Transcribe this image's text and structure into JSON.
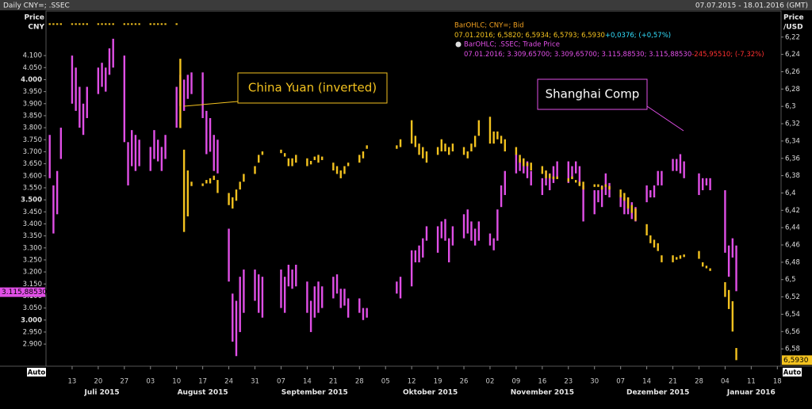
{
  "chart_data": {
    "type": "range-bar",
    "title": "Daily CNY=; .SSEC",
    "subtitle": "07.07.2015 - 18.01.2016 (GMT)",
    "y_label": [
      "Price",
      "CNY"
    ],
    "y2_label": [
      "Price",
      "/USD"
    ],
    "auto_label": "Auto",
    "xlim": [
      "2015-07-06",
      "2016-01-19"
    ],
    "ylim": [
      2.808,
      4.285
    ],
    "y2lim": [
      6.6,
      6.19
    ],
    "xticks": [
      {
        "value": "2015-07-13",
        "label": "13"
      },
      {
        "value": "2015-07-20",
        "label": "20"
      },
      {
        "value": "2015-07-27",
        "label": "27"
      },
      {
        "value": "2015-08-03",
        "label": "03"
      },
      {
        "value": "2015-08-10",
        "label": "10"
      },
      {
        "value": "2015-08-17",
        "label": "17"
      },
      {
        "value": "2015-08-24",
        "label": "24"
      },
      {
        "value": "2015-08-31",
        "label": "31"
      },
      {
        "value": "2015-09-07",
        "label": "07"
      },
      {
        "value": "2015-09-14",
        "label": "14"
      },
      {
        "value": "2015-09-21",
        "label": "21"
      },
      {
        "value": "2015-09-28",
        "label": "28"
      },
      {
        "value": "2015-10-05",
        "label": "05"
      },
      {
        "value": "2015-10-12",
        "label": "12"
      },
      {
        "value": "2015-10-19",
        "label": "19"
      },
      {
        "value": "2015-10-26",
        "label": "26"
      },
      {
        "value": "2015-11-02",
        "label": "02"
      },
      {
        "value": "2015-11-09",
        "label": "09"
      },
      {
        "value": "2015-11-16",
        "label": "16"
      },
      {
        "value": "2015-11-23",
        "label": "23"
      },
      {
        "value": "2015-11-30",
        "label": "30"
      },
      {
        "value": "2015-12-07",
        "label": "07"
      },
      {
        "value": "2015-12-14",
        "label": "14"
      },
      {
        "value": "2015-12-21",
        "label": "21"
      },
      {
        "value": "2015-12-28",
        "label": "28"
      },
      {
        "value": "2016-01-04",
        "label": "04"
      },
      {
        "value": "2016-01-11",
        "label": "11"
      },
      {
        "value": "2016-01-18",
        "label": "18"
      }
    ],
    "months": [
      {
        "value": "2015-07-21",
        "label": "Juli 2015"
      },
      {
        "value": "2015-08-17",
        "label": "August 2015"
      },
      {
        "value": "2015-09-16",
        "label": "September 2015"
      },
      {
        "value": "2015-10-17",
        "label": "Oktober 2015"
      },
      {
        "value": "2015-11-16",
        "label": "November 2015"
      },
      {
        "value": "2015-12-17",
        "label": "Dezember 2015"
      },
      {
        "value": "2016-01-11",
        "label": "Januar 2016"
      }
    ],
    "yticks": [
      {
        "value": 2.9,
        "label": "2.900"
      },
      {
        "value": 2.95,
        "label": "2.950"
      },
      {
        "value": 3.0,
        "label": "3.000"
      },
      {
        "value": 3.05,
        "label": "3.050"
      },
      {
        "value": 3.1,
        "label": "3.100"
      },
      {
        "value": 3.15,
        "label": "3.150"
      },
      {
        "value": 3.2,
        "label": "3.200"
      },
      {
        "value": 3.25,
        "label": "3.250"
      },
      {
        "value": 3.3,
        "label": "3.300"
      },
      {
        "value": 3.35,
        "label": "3.350"
      },
      {
        "value": 3.4,
        "label": "3.400"
      },
      {
        "value": 3.45,
        "label": "3.450"
      },
      {
        "value": 3.5,
        "label": "3.500"
      },
      {
        "value": 3.55,
        "label": "3.550"
      },
      {
        "value": 3.6,
        "label": "3.600"
      },
      {
        "value": 3.65,
        "label": "3.650"
      },
      {
        "value": 3.7,
        "label": "3.700"
      },
      {
        "value": 3.75,
        "label": "3.750"
      },
      {
        "value": 3.8,
        "label": "3.800"
      },
      {
        "value": 3.85,
        "label": "3.850"
      },
      {
        "value": 3.9,
        "label": "3.900"
      },
      {
        "value": 3.95,
        "label": "3.950"
      },
      {
        "value": 4.0,
        "label": "4.000"
      },
      {
        "value": 4.05,
        "label": "4.050"
      },
      {
        "value": 4.1,
        "label": "4.100"
      }
    ],
    "y2ticks": [
      {
        "value": 6.22,
        "label": "6,22"
      },
      {
        "value": 6.24,
        "label": "6,24"
      },
      {
        "value": 6.26,
        "label": "6,26"
      },
      {
        "value": 6.28,
        "label": "6,28"
      },
      {
        "value": 6.3,
        "label": "6,3"
      },
      {
        "value": 6.32,
        "label": "6,32"
      },
      {
        "value": 6.34,
        "label": "6,34"
      },
      {
        "value": 6.36,
        "label": "6,36"
      },
      {
        "value": 6.38,
        "label": "6,38"
      },
      {
        "value": 6.4,
        "label": "6,4"
      },
      {
        "value": 6.42,
        "label": "6,42"
      },
      {
        "value": 6.44,
        "label": "6,44"
      },
      {
        "value": 6.46,
        "label": "6,46"
      },
      {
        "value": 6.48,
        "label": "6,48"
      },
      {
        "value": 6.5,
        "label": "6,5"
      },
      {
        "value": 6.52,
        "label": "6,52"
      },
      {
        "value": 6.54,
        "label": "6,54"
      },
      {
        "value": 6.56,
        "label": "6,56"
      },
      {
        "value": 6.58,
        "label": "6,58"
      }
    ],
    "x": [
      "2015-07-07",
      "2015-07-08",
      "2015-07-09",
      "2015-07-10",
      "2015-07-13",
      "2015-07-14",
      "2015-07-15",
      "2015-07-16",
      "2015-07-17",
      "2015-07-20",
      "2015-07-21",
      "2015-07-22",
      "2015-07-23",
      "2015-07-24",
      "2015-07-27",
      "2015-07-28",
      "2015-07-29",
      "2015-07-30",
      "2015-07-31",
      "2015-08-03",
      "2015-08-04",
      "2015-08-05",
      "2015-08-06",
      "2015-08-07",
      "2015-08-10",
      "2015-08-11",
      "2015-08-12",
      "2015-08-13",
      "2015-08-14",
      "2015-08-17",
      "2015-08-18",
      "2015-08-19",
      "2015-08-20",
      "2015-08-21",
      "2015-08-24",
      "2015-08-25",
      "2015-08-26",
      "2015-08-27",
      "2015-08-28",
      "2015-08-31",
      "2015-09-01",
      "2015-09-02",
      "2015-09-07",
      "2015-09-08",
      "2015-09-09",
      "2015-09-10",
      "2015-09-11",
      "2015-09-14",
      "2015-09-15",
      "2015-09-16",
      "2015-09-17",
      "2015-09-18",
      "2015-09-21",
      "2015-09-22",
      "2015-09-23",
      "2015-09-24",
      "2015-09-25",
      "2015-09-28",
      "2015-09-29",
      "2015-09-30",
      "2015-10-08",
      "2015-10-09",
      "2015-10-12",
      "2015-10-13",
      "2015-10-14",
      "2015-10-15",
      "2015-10-16",
      "2015-10-19",
      "2015-10-20",
      "2015-10-21",
      "2015-10-22",
      "2015-10-23",
      "2015-10-26",
      "2015-10-27",
      "2015-10-28",
      "2015-10-29",
      "2015-10-30",
      "2015-11-02",
      "2015-11-03",
      "2015-11-04",
      "2015-11-05",
      "2015-11-06",
      "2015-11-09",
      "2015-11-10",
      "2015-11-11",
      "2015-11-12",
      "2015-11-13",
      "2015-11-16",
      "2015-11-17",
      "2015-11-18",
      "2015-11-19",
      "2015-11-20",
      "2015-11-23",
      "2015-11-24",
      "2015-11-25",
      "2015-11-26",
      "2015-11-27",
      "2015-11-30",
      "2015-12-01",
      "2015-12-02",
      "2015-12-03",
      "2015-12-04",
      "2015-12-07",
      "2015-12-08",
      "2015-12-09",
      "2015-12-10",
      "2015-12-11",
      "2015-12-14",
      "2015-12-15",
      "2015-12-16",
      "2015-12-17",
      "2015-12-18",
      "2015-12-21",
      "2015-12-22",
      "2015-12-23",
      "2015-12-24",
      "2015-12-28",
      "2015-12-29",
      "2015-12-30",
      "2015-12-31",
      "2016-01-04",
      "2016-01-05",
      "2016-01-06",
      "2016-01-07"
    ],
    "series": [
      {
        "name": "BarOHLC; .SSEC; Trade Price",
        "color": "#e04fe6",
        "detail": "07.01.2016; 3.309,65700; 3.309,65700; 3.115,88530; 3.115,88530",
        "change": "-245,95510; (-7,32%)",
        "last_value": 3.1158853,
        "last_label": "3.115,88530",
        "low": [
          3.59,
          3.36,
          3.44,
          3.67,
          3.9,
          3.87,
          3.8,
          3.77,
          3.84,
          3.94,
          3.97,
          3.95,
          4.02,
          4.05,
          3.74,
          3.56,
          3.64,
          3.62,
          3.64,
          3.62,
          3.67,
          3.66,
          3.62,
          3.67,
          3.8,
          3.89,
          3.87,
          3.92,
          3.94,
          3.84,
          3.69,
          3.7,
          3.62,
          3.61,
          3.16,
          2.91,
          2.85,
          2.95,
          3.03,
          3.08,
          3.03,
          3.01,
          3.05,
          3.03,
          3.14,
          3.13,
          3.14,
          3.03,
          2.95,
          3.01,
          3.03,
          3.05,
          3.09,
          3.11,
          3.05,
          3.06,
          3.01,
          3.03,
          3.0,
          3.01,
          3.11,
          3.09,
          3.14,
          3.24,
          3.24,
          3.26,
          3.33,
          3.28,
          3.34,
          3.33,
          3.24,
          3.31,
          3.34,
          3.36,
          3.33,
          3.31,
          3.33,
          3.31,
          3.29,
          3.33,
          3.47,
          3.52,
          3.61,
          3.62,
          3.61,
          3.59,
          3.56,
          3.52,
          3.56,
          3.54,
          3.57,
          3.59,
          3.57,
          3.59,
          3.61,
          3.56,
          3.41,
          3.44,
          3.49,
          3.47,
          3.52,
          3.51,
          3.47,
          3.44,
          3.44,
          3.42,
          3.41,
          3.49,
          3.51,
          3.51,
          3.56,
          3.56,
          3.62,
          3.62,
          3.61,
          3.59,
          3.52,
          3.54,
          3.56,
          3.54,
          3.28,
          3.18,
          3.26,
          3.12
        ],
        "high": [
          3.77,
          3.56,
          3.62,
          3.8,
          4.1,
          4.05,
          3.97,
          3.9,
          3.97,
          4.05,
          4.07,
          4.05,
          4.13,
          4.17,
          4.1,
          3.74,
          3.79,
          3.77,
          3.75,
          3.72,
          3.79,
          3.75,
          3.72,
          3.77,
          3.97,
          4.02,
          4.0,
          4.02,
          4.03,
          4.03,
          3.87,
          3.84,
          3.77,
          3.75,
          3.38,
          3.11,
          3.08,
          3.18,
          3.21,
          3.21,
          3.19,
          3.18,
          3.21,
          3.18,
          3.23,
          3.21,
          3.23,
          3.16,
          3.08,
          3.14,
          3.16,
          3.14,
          3.18,
          3.19,
          3.13,
          3.13,
          3.09,
          3.09,
          3.05,
          3.05,
          3.16,
          3.18,
          3.29,
          3.29,
          3.31,
          3.34,
          3.39,
          3.39,
          3.41,
          3.42,
          3.34,
          3.39,
          3.44,
          3.46,
          3.41,
          3.38,
          3.41,
          3.36,
          3.34,
          3.46,
          3.56,
          3.62,
          3.69,
          3.67,
          3.67,
          3.66,
          3.62,
          3.59,
          3.62,
          3.61,
          3.64,
          3.66,
          3.66,
          3.64,
          3.66,
          3.64,
          3.56,
          3.54,
          3.54,
          3.56,
          3.61,
          3.57,
          3.52,
          3.51,
          3.51,
          3.49,
          3.47,
          3.56,
          3.54,
          3.56,
          3.62,
          3.62,
          3.67,
          3.67,
          3.69,
          3.66,
          3.61,
          3.59,
          3.59,
          3.59,
          3.54,
          3.31,
          3.34,
          3.31
        ]
      },
      {
        "name": "BarOHLC; CNY=; Bid",
        "color": "#f3c21f",
        "axis": "y2",
        "detail": "07.01.2016; 6,5820; 6,5934; 6,5793; 6,5930",
        "change": "+0,0376; (+0,57%)",
        "last_value": 6.593,
        "last_label": "6,5930",
        "low": [
          6.205,
          6.205,
          6.205,
          6.205,
          6.205,
          6.205,
          6.205,
          6.205,
          6.205,
          6.205,
          6.205,
          6.205,
          6.205,
          6.205,
          6.205,
          6.205,
          6.205,
          6.205,
          6.205,
          6.205,
          6.205,
          6.205,
          6.205,
          6.205,
          6.205,
          6.245,
          6.35,
          6.374,
          6.387,
          6.389,
          6.385,
          6.383,
          6.38,
          6.385,
          6.4,
          6.405,
          6.396,
          6.387,
          6.378,
          6.369,
          6.356,
          6.352,
          6.35,
          6.354,
          6.36,
          6.36,
          6.356,
          6.36,
          6.363,
          6.358,
          6.356,
          6.358,
          6.365,
          6.369,
          6.374,
          6.369,
          6.365,
          6.356,
          6.352,
          6.345,
          6.345,
          6.338,
          6.316,
          6.334,
          6.343,
          6.347,
          6.352,
          6.347,
          6.338,
          6.343,
          6.347,
          6.343,
          6.347,
          6.352,
          6.343,
          6.334,
          6.316,
          6.312,
          6.329,
          6.329,
          6.334,
          6.338,
          6.347,
          6.356,
          6.36,
          6.365,
          6.365,
          6.369,
          6.374,
          6.378,
          6.381,
          6.381,
          6.383,
          6.381,
          6.385,
          6.387,
          6.387,
          6.39,
          6.39,
          6.392,
          6.39,
          6.392,
          6.396,
          6.4,
          6.405,
          6.414,
          6.418,
          6.436,
          6.449,
          6.454,
          6.458,
          6.472,
          6.472,
          6.474,
          6.472,
          6.471,
          6.467,
          6.48,
          6.484,
          6.487,
          6.503,
          6.512,
          6.525,
          6.579
        ],
        "high": [
          6.206,
          6.206,
          6.206,
          6.206,
          6.206,
          6.206,
          6.206,
          6.206,
          6.206,
          6.206,
          6.206,
          6.206,
          6.206,
          6.206,
          6.206,
          6.206,
          6.206,
          6.206,
          6.206,
          6.206,
          6.206,
          6.206,
          6.206,
          6.206,
          6.206,
          6.325,
          6.445,
          6.427,
          6.392,
          6.392,
          6.389,
          6.389,
          6.385,
          6.4,
          6.414,
          6.418,
          6.409,
          6.396,
          6.387,
          6.378,
          6.365,
          6.356,
          6.354,
          6.358,
          6.369,
          6.369,
          6.365,
          6.369,
          6.367,
          6.362,
          6.365,
          6.362,
          6.374,
          6.378,
          6.383,
          6.378,
          6.369,
          6.365,
          6.36,
          6.349,
          6.349,
          6.347,
          6.343,
          6.347,
          6.356,
          6.36,
          6.365,
          6.356,
          6.352,
          6.352,
          6.356,
          6.352,
          6.356,
          6.36,
          6.352,
          6.347,
          6.334,
          6.343,
          6.343,
          6.338,
          6.343,
          6.352,
          6.356,
          6.365,
          6.369,
          6.369,
          6.374,
          6.378,
          6.383,
          6.383,
          6.384,
          6.384,
          6.387,
          6.384,
          6.388,
          6.392,
          6.396,
          6.393,
          6.393,
          6.396,
          6.393,
          6.396,
          6.405,
          6.409,
          6.418,
          6.423,
          6.432,
          6.449,
          6.458,
          6.463,
          6.467,
          6.48,
          6.48,
          6.477,
          6.476,
          6.474,
          6.476,
          6.485,
          6.487,
          6.49,
          6.52,
          6.534,
          6.56,
          6.593
        ]
      }
    ],
    "annotations": [
      {
        "text": "China Yuan (inverted)"
      },
      {
        "text": "Shanghai Comp"
      }
    ]
  }
}
